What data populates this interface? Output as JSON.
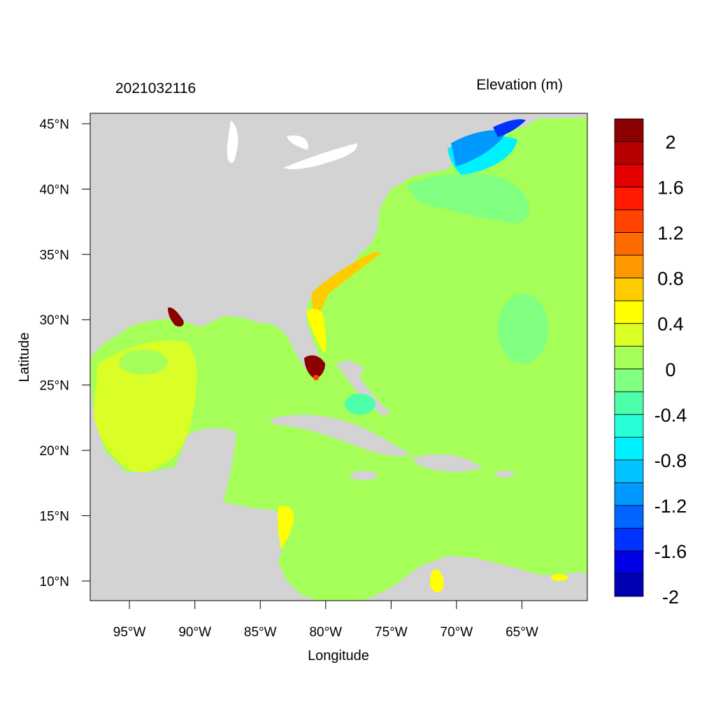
{
  "header": {
    "timestamp": "2021032116",
    "variable": "Elevation (m)"
  },
  "axes": {
    "xlabel": "Longitude",
    "ylabel": "Latitude",
    "lat_ticks": [
      {
        "value": 45,
        "label": "45°N"
      },
      {
        "value": 40,
        "label": "40°N"
      },
      {
        "value": 35,
        "label": "35°N"
      },
      {
        "value": 30,
        "label": "30°N"
      },
      {
        "value": 25,
        "label": "25°N"
      },
      {
        "value": 20,
        "label": "20°N"
      },
      {
        "value": 15,
        "label": "15°N"
      },
      {
        "value": 10,
        "label": "10°N"
      }
    ],
    "lon_ticks": [
      {
        "value": -95,
        "label": "95°W"
      },
      {
        "value": -90,
        "label": "90°W"
      },
      {
        "value": -85,
        "label": "85°W"
      },
      {
        "value": -80,
        "label": "80°W"
      },
      {
        "value": -75,
        "label": "75°W"
      },
      {
        "value": -70,
        "label": "70°W"
      },
      {
        "value": -65,
        "label": "65°W"
      }
    ],
    "lon_range": [
      -98,
      -60
    ],
    "lat_range": [
      8.5,
      45.8
    ]
  },
  "colorbar": {
    "bins_top_to_bottom": [
      "#8B0000",
      "#B80000",
      "#E60000",
      "#FF1A00",
      "#FF4400",
      "#FF6A00",
      "#FF9900",
      "#FFCC00",
      "#FFFF00",
      "#D9FF26",
      "#A6FF59",
      "#80FF80",
      "#4DFFAA",
      "#26FFD9",
      "#00F0FF",
      "#00C3FF",
      "#0099FF",
      "#0066FF",
      "#0033FF",
      "#0000E6",
      "#0000B3"
    ],
    "labels": [
      "2",
      "1.6",
      "1.2",
      "0.8",
      "0.4",
      "0",
      "-0.4",
      "-0.8",
      "-1.2",
      "-1.6",
      "-2"
    ]
  },
  "map": {
    "land_color": "#D3D3D3",
    "ocean_color": "#A6FF59"
  }
}
